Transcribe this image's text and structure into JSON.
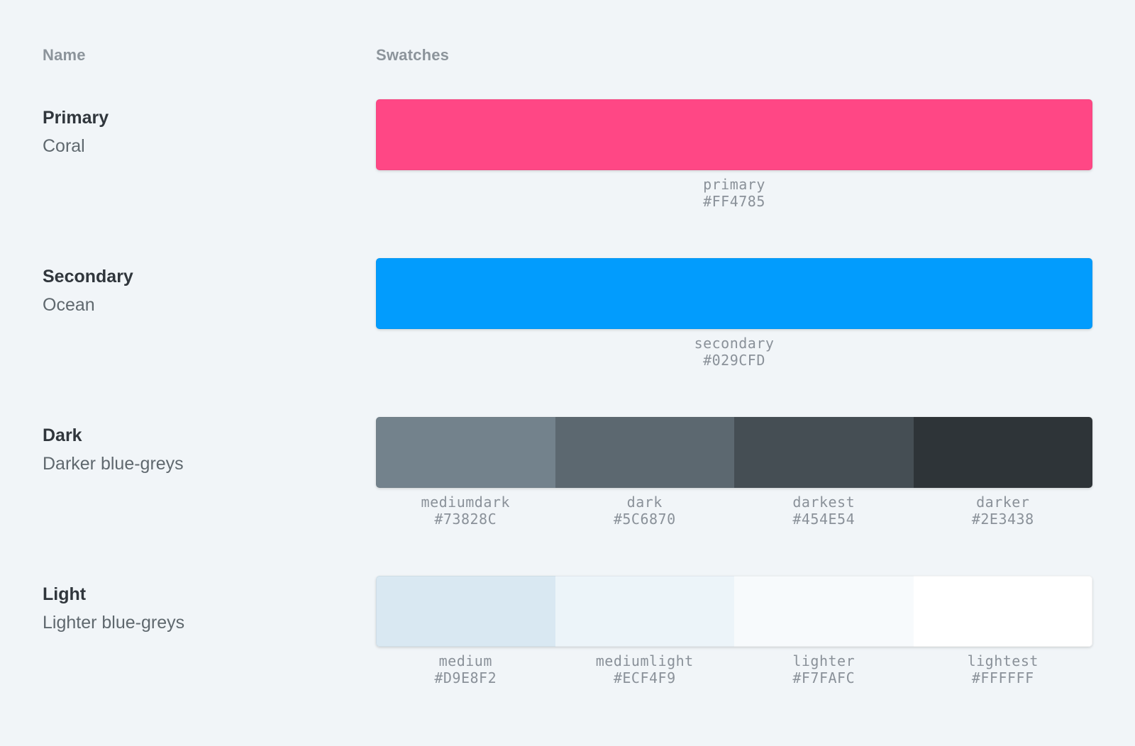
{
  "page": {
    "background": "#F1F5F8"
  },
  "table": {
    "headers": {
      "name": "Name",
      "swatches": "Swatches"
    },
    "rows": [
      {
        "title": "Primary",
        "subtitle": "Coral",
        "swatches": [
          {
            "name": "primary",
            "hex": "#FF4785"
          }
        ]
      },
      {
        "title": "Secondary",
        "subtitle": "Ocean",
        "swatches": [
          {
            "name": "secondary",
            "hex": "#029CFD"
          }
        ]
      },
      {
        "title": "Dark",
        "subtitle": "Darker blue-greys",
        "swatches": [
          {
            "name": "mediumdark",
            "hex": "#73828C"
          },
          {
            "name": "dark",
            "hex": "#5C6870"
          },
          {
            "name": "darkest",
            "hex": "#454E54"
          },
          {
            "name": "darker",
            "hex": "#2E3438"
          }
        ]
      },
      {
        "title": "Light",
        "subtitle": "Lighter blue-greys",
        "swatches": [
          {
            "name": "medium",
            "hex": "#D9E8F2"
          },
          {
            "name": "mediumlight",
            "hex": "#ECF4F9"
          },
          {
            "name": "lighter",
            "hex": "#F7FAFC"
          },
          {
            "name": "lightest",
            "hex": "#FFFFFF"
          }
        ]
      }
    ]
  }
}
